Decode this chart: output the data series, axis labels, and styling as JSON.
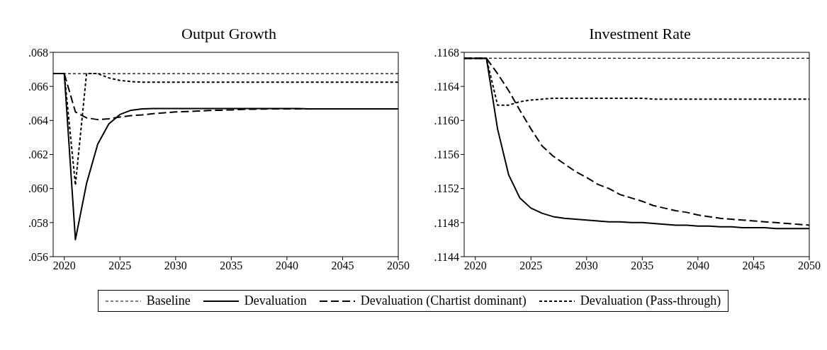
{
  "chart_data": [
    {
      "type": "line",
      "title": "Output Growth",
      "x": [
        2019,
        2020,
        2021,
        2022,
        2023,
        2024,
        2025,
        2026,
        2027,
        2028,
        2029,
        2030,
        2031,
        2032,
        2033,
        2034,
        2035,
        2036,
        2037,
        2038,
        2039,
        2040,
        2041,
        2042,
        2043,
        2044,
        2045,
        2046,
        2047,
        2048,
        2049,
        2050
      ],
      "xlim": [
        2019,
        2050
      ],
      "xticks": [
        2020,
        2025,
        2030,
        2035,
        2040,
        2045,
        2050
      ],
      "ylim": [
        0.056,
        0.068
      ],
      "yticks": [
        {
          "value": 0.056,
          "label": ".056"
        },
        {
          "value": 0.058,
          "label": ".058"
        },
        {
          "value": 0.06,
          "label": ".060"
        },
        {
          "value": 0.062,
          "label": ".062"
        },
        {
          "value": 0.064,
          "label": ".064"
        },
        {
          "value": 0.066,
          "label": ".066"
        },
        {
          "value": 0.068,
          "label": ".068"
        }
      ],
      "grid": false,
      "legend": "bottom",
      "marker": "none",
      "series": [
        {
          "name": "Baseline",
          "color": "#000000",
          "line_style": "dotted",
          "values": [
            0.06675,
            0.06675,
            0.06675,
            0.06675,
            0.06675,
            0.06675,
            0.06675,
            0.06675,
            0.06675,
            0.06675,
            0.06675,
            0.06675,
            0.06675,
            0.06675,
            0.06675,
            0.06675,
            0.06675,
            0.06675,
            0.06675,
            0.06675,
            0.06675,
            0.06675,
            0.06675,
            0.06675,
            0.06675,
            0.06675,
            0.06675,
            0.06675,
            0.06675,
            0.06675,
            0.06675,
            0.06675
          ]
        },
        {
          "name": "Devaluation",
          "color": "#000000",
          "line_style": "solid",
          "values": [
            0.06675,
            0.06675,
            0.057,
            0.0603,
            0.0626,
            0.0638,
            0.06435,
            0.0646,
            0.06468,
            0.0647,
            0.0647,
            0.0647,
            0.0647,
            0.0647,
            0.0647,
            0.0647,
            0.0647,
            0.0647,
            0.0647,
            0.0647,
            0.0647,
            0.0647,
            0.0647,
            0.06468,
            0.06468,
            0.06468,
            0.06468,
            0.06468,
            0.06468,
            0.06468,
            0.06468,
            0.06468
          ]
        },
        {
          "name": "Devaluation (Chartist dominant)",
          "color": "#000000",
          "line_style": "dashed",
          "values": [
            0.06675,
            0.06675,
            0.0645,
            0.06415,
            0.06405,
            0.0641,
            0.0642,
            0.06428,
            0.06433,
            0.0644,
            0.06445,
            0.0645,
            0.06452,
            0.06455,
            0.06458,
            0.0646,
            0.06462,
            0.06465,
            0.06466,
            0.06467,
            0.06468,
            0.06468,
            0.06468,
            0.06468,
            0.06468,
            0.06468,
            0.06468,
            0.06468,
            0.06468,
            0.06468,
            0.06468,
            0.06468
          ]
        },
        {
          "name": "Devaluation (Pass-through)",
          "color": "#000000",
          "line_style": "dotted",
          "values": [
            0.06675,
            0.06675,
            0.0602,
            0.06675,
            0.06675,
            0.0665,
            0.06635,
            0.06628,
            0.06625,
            0.06625,
            0.06625,
            0.06625,
            0.06625,
            0.06625,
            0.06625,
            0.06625,
            0.06625,
            0.06625,
            0.06625,
            0.06625,
            0.06625,
            0.06625,
            0.06625,
            0.06625,
            0.06625,
            0.06625,
            0.06625,
            0.06625,
            0.06625,
            0.06625,
            0.06625,
            0.06625
          ]
        }
      ]
    },
    {
      "type": "line",
      "title": "Investment Rate",
      "x": [
        2019,
        2020,
        2021,
        2022,
        2023,
        2024,
        2025,
        2026,
        2027,
        2028,
        2029,
        2030,
        2031,
        2032,
        2033,
        2034,
        2035,
        2036,
        2037,
        2038,
        2039,
        2040,
        2041,
        2042,
        2043,
        2044,
        2045,
        2046,
        2047,
        2048,
        2049,
        2050
      ],
      "xlim": [
        2019,
        2050
      ],
      "xticks": [
        2020,
        2025,
        2030,
        2035,
        2040,
        2045,
        2050
      ],
      "ylim": [
        0.1144,
        0.1168
      ],
      "yticks": [
        {
          "value": 0.1144,
          "label": ".1144"
        },
        {
          "value": 0.1148,
          "label": ".1148"
        },
        {
          "value": 0.1152,
          "label": ".1152"
        },
        {
          "value": 0.1156,
          "label": ".1156"
        },
        {
          "value": 0.116,
          "label": ".1160"
        },
        {
          "value": 0.1164,
          "label": ".1164"
        },
        {
          "value": 0.1168,
          "label": ".1168"
        }
      ],
      "grid": false,
      "marker": "none",
      "series": [
        {
          "color": "#000000",
          "line_style": "dotted",
          "values": [
            0.11673,
            0.11673,
            0.11673,
            0.11673,
            0.11673,
            0.11673,
            0.11673,
            0.11673,
            0.11673,
            0.11673,
            0.11673,
            0.11673,
            0.11673,
            0.11673,
            0.11673,
            0.11673,
            0.11673,
            0.11673,
            0.11673,
            0.11673,
            0.11673,
            0.11673,
            0.11673,
            0.11673,
            0.11673,
            0.11673,
            0.11673,
            0.11673,
            0.11673,
            0.11673,
            0.11673,
            0.11673
          ]
        },
        {
          "color": "#000000",
          "line_style": "solid",
          "values": [
            0.11673,
            0.11673,
            0.11673,
            0.1159,
            0.11536,
            0.11509,
            0.11497,
            0.11491,
            0.11487,
            0.11485,
            0.11484,
            0.11483,
            0.11482,
            0.11481,
            0.11481,
            0.1148,
            0.1148,
            0.11479,
            0.11478,
            0.11477,
            0.11477,
            0.11476,
            0.11476,
            0.11475,
            0.11475,
            0.11474,
            0.11474,
            0.11474,
            0.11473,
            0.11473,
            0.11473,
            0.11473
          ]
        },
        {
          "color": "#000000",
          "line_style": "dashed",
          "values": [
            0.11673,
            0.11673,
            0.11673,
            0.11655,
            0.11635,
            0.11612,
            0.1159,
            0.1157,
            0.11558,
            0.11549,
            0.1154,
            0.11533,
            0.11525,
            0.1152,
            0.11513,
            0.11509,
            0.11505,
            0.115,
            0.11497,
            0.11494,
            0.11492,
            0.11489,
            0.11487,
            0.11485,
            0.11484,
            0.11483,
            0.11482,
            0.11481,
            0.1148,
            0.11479,
            0.11478,
            0.11477
          ]
        },
        {
          "color": "#000000",
          "line_style": "dotted",
          "values": [
            0.11673,
            0.11673,
            0.11673,
            0.11618,
            0.11618,
            0.11622,
            0.11624,
            0.11625,
            0.11626,
            0.11626,
            0.11626,
            0.11626,
            0.11626,
            0.11626,
            0.11626,
            0.11626,
            0.11626,
            0.11625,
            0.11625,
            0.11625,
            0.11625,
            0.11625,
            0.11625,
            0.11625,
            0.11625,
            0.11625,
            0.11625,
            0.11625,
            0.11625,
            0.11625,
            0.11625,
            0.11625
          ]
        }
      ]
    }
  ]
}
